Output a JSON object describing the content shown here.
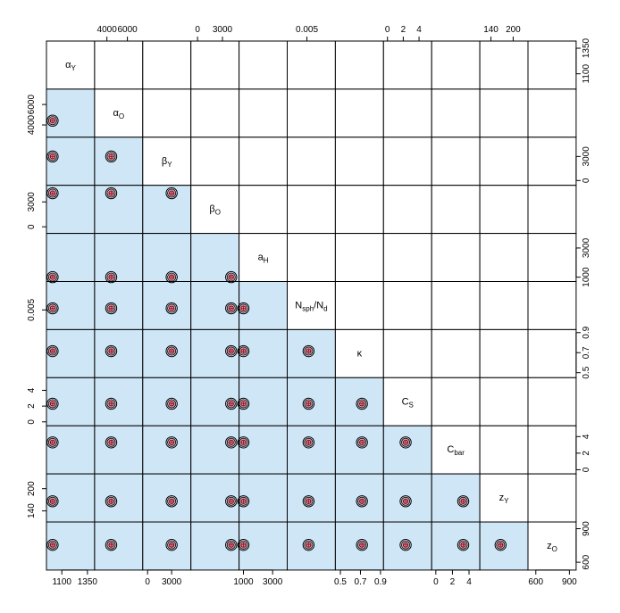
{
  "chart_data": {
    "type": "pairs-contour-matrix",
    "variables": [
      {
        "label": "α",
        "sub": "Y",
        "range": [
          950,
          1420
        ]
      },
      {
        "label": "α",
        "sub": "O",
        "range": [
          2800,
          7500
        ]
      },
      {
        "label": "β",
        "sub": "Y",
        "range": [
          -600,
          5400
        ]
      },
      {
        "label": "β",
        "sub": "O",
        "range": [
          -800,
          5000
        ]
      },
      {
        "label": "a",
        "sub": "H",
        "range": [
          700,
          4000
        ]
      },
      {
        "label": "N",
        "sub": "sph",
        "suffix": "/N",
        "suffix_sub": "d",
        "range": [
          0.0032,
          0.0076
        ]
      },
      {
        "label": "κ",
        "sub": "",
        "range": [
          0.45,
          0.93
        ]
      },
      {
        "label": "C",
        "sub": "S",
        "range": [
          -0.5,
          5.6
        ]
      },
      {
        "label": "C",
        "sub": "bar",
        "range": [
          -0.5,
          5.3
        ]
      },
      {
        "label": "z",
        "sub": "Y",
        "range": [
          110,
          240
        ]
      },
      {
        "label": "z",
        "sub": "O",
        "range": [
          530,
          960
        ]
      }
    ],
    "axis_ticks": {
      "top": [
        {
          "col": 1,
          "labels": [
            "4000",
            "6000"
          ],
          "values": [
            4000,
            6000
          ]
        },
        {
          "col": 3,
          "labels": [
            "0",
            "3000"
          ],
          "values": [
            0,
            3000
          ]
        },
        {
          "col": 5,
          "labels": [
            "0.005"
          ],
          "values": [
            0.005
          ]
        },
        {
          "col": 7,
          "labels": [
            "0",
            "2",
            "4"
          ],
          "values": [
            0,
            2,
            4
          ]
        },
        {
          "col": 9,
          "labels": [
            "140",
            "200"
          ],
          "values": [
            140,
            200
          ]
        }
      ],
      "bottom": [
        {
          "col": 0,
          "labels": [
            "1100",
            "1350"
          ],
          "values": [
            1100,
            1350
          ]
        },
        {
          "col": 2,
          "labels": [
            "0",
            "3000"
          ],
          "values": [
            0,
            3000
          ]
        },
        {
          "col": 4,
          "labels": [
            "1000",
            "3000"
          ],
          "values": [
            1000,
            3000
          ]
        },
        {
          "col": 6,
          "labels": [
            "0.5",
            "0.7",
            "0.9"
          ],
          "values": [
            0.5,
            0.7,
            0.9
          ]
        },
        {
          "col": 8,
          "labels": [
            "0",
            "2",
            "4"
          ],
          "values": [
            0,
            2,
            4
          ]
        },
        {
          "col": 10,
          "labels": [
            "600",
            "900"
          ],
          "values": [
            600,
            900
          ]
        }
      ],
      "left": [
        {
          "row": 1,
          "labels": [
            "4000",
            "6000"
          ],
          "values": [
            4000,
            6000
          ]
        },
        {
          "row": 3,
          "labels": [
            "0",
            "3000"
          ],
          "values": [
            0,
            3000
          ]
        },
        {
          "row": 5,
          "labels": [
            "0.005"
          ],
          "values": [
            0.005
          ]
        },
        {
          "row": 7,
          "labels": [
            "0",
            "2",
            "4"
          ],
          "values": [
            0,
            2,
            4
          ]
        },
        {
          "row": 9,
          "labels": [
            "140",
            "200"
          ],
          "values": [
            140,
            200
          ]
        }
      ],
      "right": [
        {
          "row": 0,
          "labels": [
            "1100",
            "1350"
          ],
          "values": [
            1100,
            1350
          ]
        },
        {
          "row": 2,
          "labels": [
            "0",
            "3000"
          ],
          "values": [
            0,
            3000
          ]
        },
        {
          "row": 4,
          "labels": [
            "1000",
            "3000"
          ],
          "values": [
            1000,
            3000
          ]
        },
        {
          "row": 6,
          "labels": [
            "0.5",
            "0.7",
            "0.9"
          ],
          "values": [
            0.5,
            0.7,
            0.9
          ]
        },
        {
          "row": 8,
          "labels": [
            "0",
            "2",
            "4"
          ],
          "values": [
            0,
            2,
            4
          ]
        },
        {
          "row": 10,
          "labels": [
            "600",
            "900"
          ],
          "values": [
            600,
            900
          ]
        }
      ]
    },
    "estimates": [
      1010,
      4420,
      3000,
      4050,
      1000,
      0.00515,
      0.715,
      2.3,
      3.3,
      166,
      755
    ],
    "panel_fill": "#cfe6f7",
    "contour_fill": "#e89aa6",
    "contour_line": "#000000",
    "grid": false
  }
}
